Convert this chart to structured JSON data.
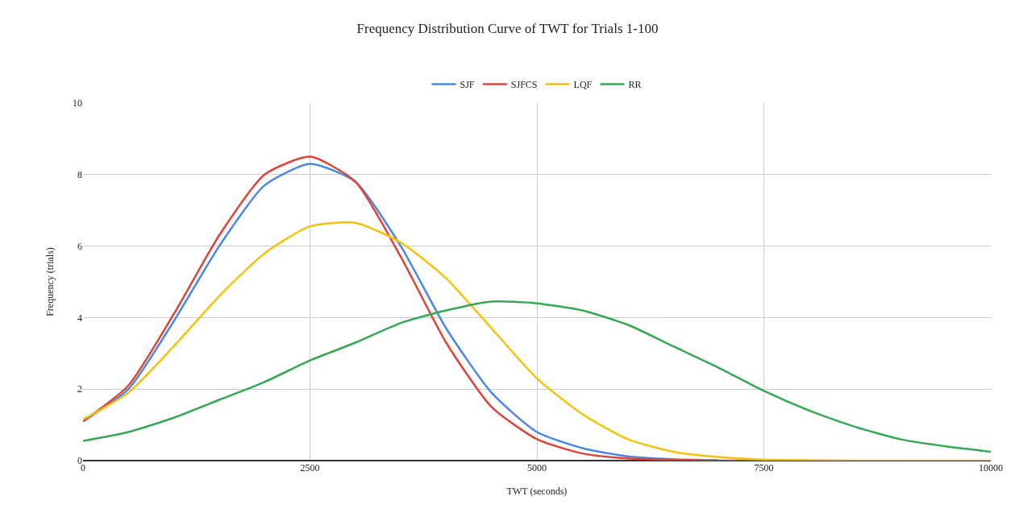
{
  "chart_data": {
    "type": "line",
    "title": "Frequency Distribution Curve of TWT for Trials 1-100",
    "xlabel": "TWT (seconds)",
    "ylabel": "Frequency (trials)",
    "x": [
      0,
      500,
      1000,
      1500,
      2000,
      2500,
      3000,
      3500,
      4000,
      4500,
      5000,
      5500,
      6000,
      6500,
      7000,
      7500,
      8000,
      8500,
      9000,
      9500,
      10000
    ],
    "series": [
      {
        "name": "SJF",
        "color": "#4a86e8",
        "values": [
          1.1,
          2.0,
          3.9,
          6.0,
          7.7,
          8.3,
          7.8,
          6.0,
          3.7,
          1.9,
          0.8,
          0.35,
          0.12,
          0.04,
          0.01,
          null,
          null,
          null,
          null,
          null,
          null
        ]
      },
      {
        "name": "SJFCS",
        "color": "#db4437",
        "values": [
          1.1,
          2.1,
          4.1,
          6.3,
          8.0,
          8.5,
          7.8,
          5.7,
          3.3,
          1.5,
          0.6,
          0.2,
          0.06,
          0.02,
          0,
          0,
          0,
          null,
          null,
          null,
          null
        ]
      },
      {
        "name": "LQF",
        "color": "#f4c20d",
        "values": [
          1.15,
          1.9,
          3.2,
          4.6,
          5.8,
          6.55,
          6.65,
          6.1,
          5.1,
          3.7,
          2.3,
          1.3,
          0.6,
          0.25,
          0.1,
          0.03,
          0.01,
          0,
          0,
          0,
          0
        ]
      },
      {
        "name": "RR",
        "color": "#34a853",
        "values": [
          0.55,
          0.8,
          1.2,
          1.7,
          2.2,
          2.8,
          3.3,
          3.85,
          4.2,
          4.45,
          4.4,
          4.2,
          3.8,
          3.2,
          2.6,
          1.95,
          1.4,
          0.95,
          0.6,
          0.4,
          0.25
        ]
      }
    ],
    "xlim": [
      0,
      10000
    ],
    "xticks": [
      0,
      2500,
      5000,
      7500,
      10000
    ],
    "ylim": [
      0,
      10
    ],
    "yticks": [
      0,
      2,
      4,
      6,
      8,
      10
    ],
    "grid": true,
    "legend": "top",
    "marker": "none",
    "line_style": "solid"
  }
}
